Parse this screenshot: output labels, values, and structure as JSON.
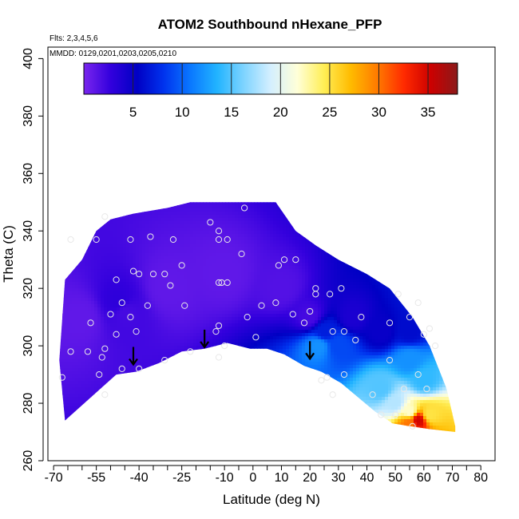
{
  "chart_data": {
    "type": "heatmap",
    "title": "ATOM2 Southbound nHexane_PFP",
    "annotations": [
      "Flts: 2,3,4,5,6",
      "MMDD: 0129,0201,0203,0205,0210"
    ],
    "xlabel": "Latitude (deg N)",
    "ylabel": "Theta (C)",
    "xlim": [
      -72,
      85
    ],
    "ylim": [
      260,
      404
    ],
    "x_tick_labels": [
      "-70",
      "-55",
      "-40",
      "-25",
      "-10",
      "0",
      "10",
      "20",
      "30",
      "40",
      "50",
      "60",
      "70",
      "80"
    ],
    "x_tick_values": [
      -70,
      -55,
      -40,
      -25,
      -10,
      0,
      10,
      20,
      30,
      40,
      50,
      60,
      70,
      80
    ],
    "y_tick_labels": [
      "260",
      "280",
      "300",
      "320",
      "340",
      "360",
      "380",
      "400"
    ],
    "y_tick_values": [
      260,
      280,
      300,
      320,
      340,
      360,
      380,
      400
    ],
    "colorbar": {
      "range": [
        0,
        38
      ],
      "tick_labels": [
        "5",
        "10",
        "15",
        "20",
        "25",
        "30",
        "35"
      ],
      "tick_values": [
        5,
        10,
        15,
        20,
        25,
        30,
        35
      ],
      "colors": [
        "#7a26ee",
        "#3300dd",
        "#0000c4",
        "#0033ee",
        "#0a78ff",
        "#22b4ff",
        "#7fd4ff",
        "#d4efff",
        "#ffffd8",
        "#ffee55",
        "#ffbb00",
        "#ff7a00",
        "#ff2a00",
        "#cc0000",
        "#8b1a1a"
      ]
    },
    "surface_boundary": [
      [
        -66,
        274
      ],
      [
        -57,
        282
      ],
      [
        -48,
        290
      ],
      [
        -41,
        291
      ],
      [
        -33,
        294
      ],
      [
        -25,
        298
      ],
      [
        -17,
        299
      ],
      [
        -9,
        301
      ],
      [
        -1,
        299
      ],
      [
        5,
        299
      ],
      [
        11,
        297
      ],
      [
        18,
        293
      ],
      [
        24,
        291
      ],
      [
        31,
        287
      ],
      [
        37,
        282
      ],
      [
        43,
        277
      ],
      [
        49,
        273
      ],
      [
        55,
        272
      ],
      [
        62,
        271
      ],
      [
        71,
        270
      ]
    ],
    "top_boundary": [
      [
        -68,
        295
      ],
      [
        -66,
        323
      ],
      [
        -60,
        330
      ],
      [
        -55,
        340
      ],
      [
        -50,
        344
      ],
      [
        -42,
        346
      ],
      [
        -30,
        348
      ],
      [
        -22,
        350
      ],
      [
        -12,
        350
      ],
      [
        -4,
        350
      ],
      [
        8,
        350
      ],
      [
        15,
        340
      ],
      [
        22,
        335
      ],
      [
        30,
        330
      ],
      [
        40,
        325
      ],
      [
        48,
        320
      ],
      [
        56,
        310
      ],
      [
        62,
        300
      ],
      [
        68,
        285
      ],
      [
        71,
        272
      ]
    ],
    "field": [
      {
        "x": -60,
        "y": 310,
        "v": 1
      },
      {
        "x": -45,
        "y": 312,
        "v": 2
      },
      {
        "x": -47,
        "y": 315,
        "v": 3
      },
      {
        "x": -30,
        "y": 320,
        "v": 1
      },
      {
        "x": -10,
        "y": 325,
        "v": 1
      },
      {
        "x": 10,
        "y": 320,
        "v": 1.5
      },
      {
        "x": 20,
        "y": 310,
        "v": 2
      },
      {
        "x": 25,
        "y": 305,
        "v": 7
      },
      {
        "x": 30,
        "y": 300,
        "v": 9
      },
      {
        "x": 23,
        "y": 300,
        "v": 12
      },
      {
        "x": 35,
        "y": 310,
        "v": 4
      },
      {
        "x": 45,
        "y": 305,
        "v": 5
      },
      {
        "x": 55,
        "y": 305,
        "v": 6
      },
      {
        "x": 55,
        "y": 295,
        "v": 12
      },
      {
        "x": 60,
        "y": 288,
        "v": 14
      },
      {
        "x": 45,
        "y": 285,
        "v": 15
      },
      {
        "x": 50,
        "y": 280,
        "v": 18
      },
      {
        "x": 55,
        "y": 277,
        "v": 22
      },
      {
        "x": 58,
        "y": 274,
        "v": 35
      },
      {
        "x": 55,
        "y": 273,
        "v": 30
      },
      {
        "x": 62,
        "y": 276,
        "v": 25
      }
    ],
    "points": [
      [
        -52,
        345
      ],
      [
        -64,
        337
      ],
      [
        -43,
        337
      ],
      [
        -55,
        337
      ],
      [
        -36,
        338
      ],
      [
        -28,
        337
      ],
      [
        -12,
        340
      ],
      [
        -12,
        337
      ],
      [
        -9,
        337
      ],
      [
        -3,
        348
      ],
      [
        -15,
        343
      ],
      [
        -40,
        325
      ],
      [
        -35,
        325
      ],
      [
        -31,
        325
      ],
      [
        -25,
        328
      ],
      [
        -29,
        321
      ],
      [
        -42,
        326
      ],
      [
        -48,
        323
      ],
      [
        -37,
        314
      ],
      [
        -24,
        314
      ],
      [
        -46,
        315
      ],
      [
        -43,
        310
      ],
      [
        -50,
        311
      ],
      [
        -41,
        305
      ],
      [
        -57,
        308
      ],
      [
        -48,
        304
      ],
      [
        -52,
        299
      ],
      [
        -53,
        296
      ],
      [
        -58,
        298
      ],
      [
        -54,
        290
      ],
      [
        -52,
        283
      ],
      [
        -40,
        292
      ],
      [
        -31,
        295
      ],
      [
        -22,
        298
      ],
      [
        -67,
        289
      ],
      [
        -64,
        298
      ],
      [
        -46,
        292
      ],
      [
        -12,
        322
      ],
      [
        -11,
        322
      ],
      [
        -9,
        322
      ],
      [
        -4,
        332
      ],
      [
        -12,
        307
      ],
      [
        -13,
        305
      ],
      [
        -10,
        300
      ],
      [
        -12,
        296
      ],
      [
        -2,
        310
      ],
      [
        1,
        303
      ],
      [
        3,
        314
      ],
      [
        8,
        315
      ],
      [
        9,
        328
      ],
      [
        11,
        330
      ],
      [
        15,
        330
      ],
      [
        14,
        311
      ],
      [
        18,
        308
      ],
      [
        20,
        312
      ],
      [
        22,
        318
      ],
      [
        22,
        320
      ],
      [
        27,
        318
      ],
      [
        31,
        320
      ],
      [
        28,
        305
      ],
      [
        32,
        305
      ],
      [
        36,
        302
      ],
      [
        38,
        310
      ],
      [
        24,
        288
      ],
      [
        26,
        289
      ],
      [
        28,
        283
      ],
      [
        32,
        290
      ],
      [
        42,
        283
      ],
      [
        45,
        276
      ],
      [
        48,
        295
      ],
      [
        48,
        308
      ],
      [
        51,
        318
      ],
      [
        55,
        310
      ],
      [
        58,
        315
      ],
      [
        62,
        306
      ],
      [
        60,
        304
      ],
      [
        64,
        300
      ],
      [
        58,
        290
      ],
      [
        61,
        285
      ],
      [
        53,
        285
      ],
      [
        50,
        276
      ],
      [
        56,
        272
      ]
    ],
    "arrows": [
      [
        -42,
        296
      ],
      [
        -17,
        302
      ],
      [
        20,
        298
      ]
    ]
  }
}
